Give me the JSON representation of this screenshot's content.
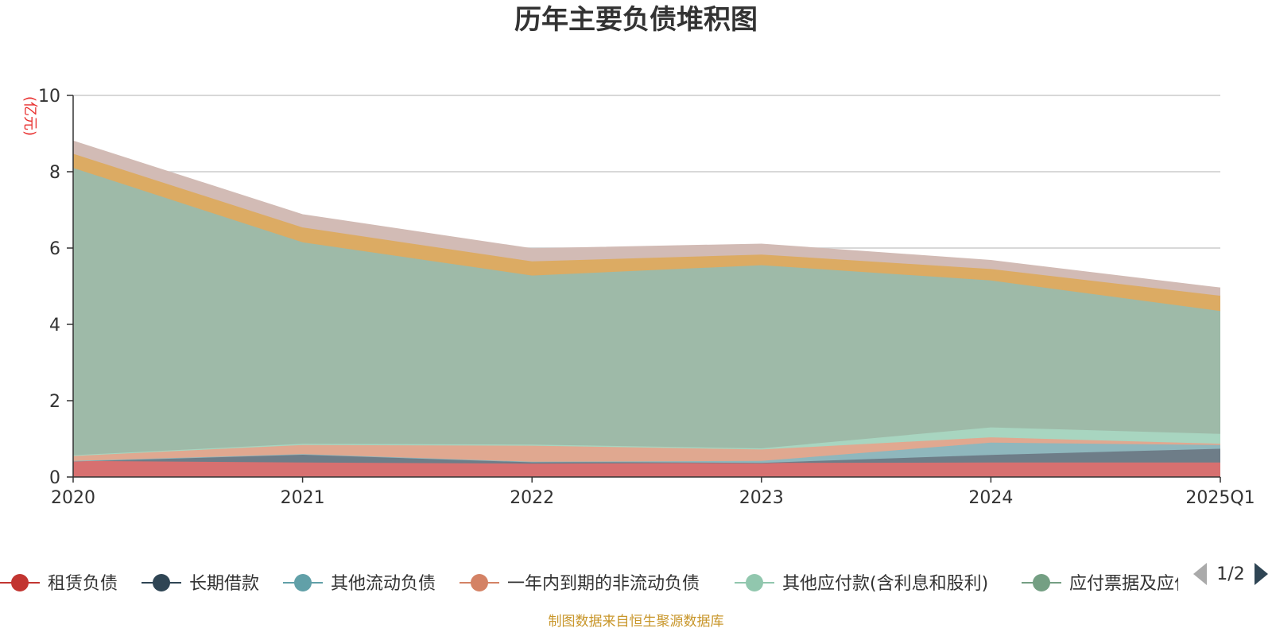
{
  "chart_data": {
    "type": "area",
    "stacked": true,
    "title": "历年主要负债堆积图",
    "unit": "(亿元)",
    "categories": [
      "2020",
      "2021",
      "2022",
      "2023",
      "2024",
      "2025Q1"
    ],
    "ylim": [
      0,
      10
    ],
    "yticks": [
      0,
      2,
      4,
      6,
      8,
      10
    ],
    "grid": true,
    "series": [
      {
        "name": "租赁负债",
        "color": "#c23531",
        "fill": "#d77070",
        "values": [
          0.42,
          0.38,
          0.35,
          0.37,
          0.38,
          0.38
        ]
      },
      {
        "name": "长期借款",
        "color": "#2f4554",
        "fill": "#6e7d88",
        "values": [
          0.0,
          0.22,
          0.05,
          0.0,
          0.2,
          0.36
        ]
      },
      {
        "name": "其他流动负债",
        "color": "#61a0a8",
        "fill": "#8fb7bd",
        "values": [
          0.0,
          0.0,
          0.0,
          0.05,
          0.32,
          0.1
        ]
      },
      {
        "name": "一年内到期的非流动负债",
        "color": "#d48265",
        "fill": "#e0a890",
        "values": [
          0.13,
          0.24,
          0.42,
          0.3,
          0.14,
          0.03
        ]
      },
      {
        "name": "其他应付款(含利息和股利)",
        "color": "#91c7ae",
        "fill": "#a8d5c0",
        "values": [
          0.02,
          0.03,
          0.03,
          0.03,
          0.26,
          0.26
        ]
      },
      {
        "name": "应付票据及应付账款",
        "color": "#749f83",
        "fill": "#9ebaa8",
        "values": [
          7.53,
          5.28,
          4.43,
          4.8,
          3.85,
          3.22
        ]
      },
      {
        "name": "",
        "color": "#ca8622",
        "fill": "#dcab63",
        "values": [
          0.37,
          0.39,
          0.37,
          0.28,
          0.3,
          0.4
        ]
      },
      {
        "name": "",
        "color": "#bda29a",
        "fill": "#d2bbb5",
        "values": [
          0.33,
          0.33,
          0.33,
          0.27,
          0.22,
          0.2
        ]
      }
    ],
    "legend": {
      "position": "bottom",
      "visible_count": 6,
      "page": "1/2"
    },
    "source": "制图数据来自恒生聚源数据库"
  }
}
